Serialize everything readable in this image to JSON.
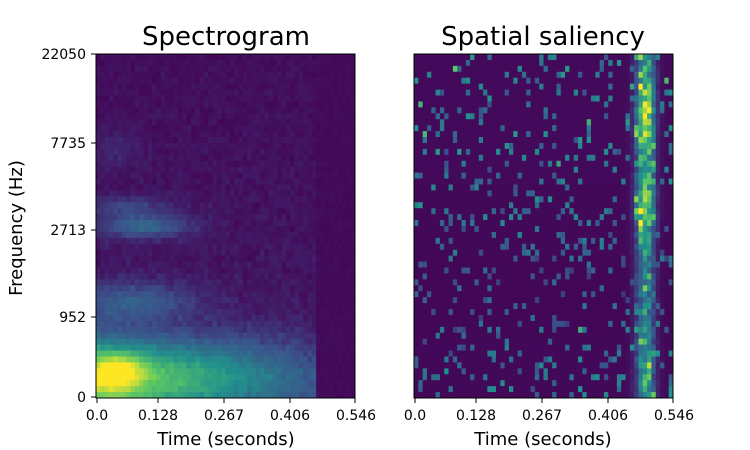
{
  "chart_data": [
    {
      "type": "heatmap",
      "title": "Spectrogram",
      "xlabel": "Time (seconds)",
      "ylabel": "Frequency (Hz)",
      "xticks": [
        "0.0",
        "0.128",
        "0.267",
        "0.406",
        "0.546"
      ],
      "yticks": [
        "22050",
        "7735",
        "2713",
        "952",
        "0"
      ],
      "colormap": "viridis",
      "notes_visible_pattern": "Energy strongest at low frequencies during first ~0.25 s; bands near 2713 Hz and ~952 Hz; near-zero after ~0.47 s."
    },
    {
      "type": "heatmap",
      "title": "Spatial saliency",
      "xlabel": "Time (seconds)",
      "ylabel": "",
      "xticks": [
        "0.0",
        "0.128",
        "0.267",
        "0.406",
        "0.546"
      ],
      "yticks": [],
      "colormap": "viridis",
      "notes_visible_pattern": "Sparse scattered cells across the plot; a dense bright vertical band near ~0.5 s across most frequencies."
    }
  ]
}
